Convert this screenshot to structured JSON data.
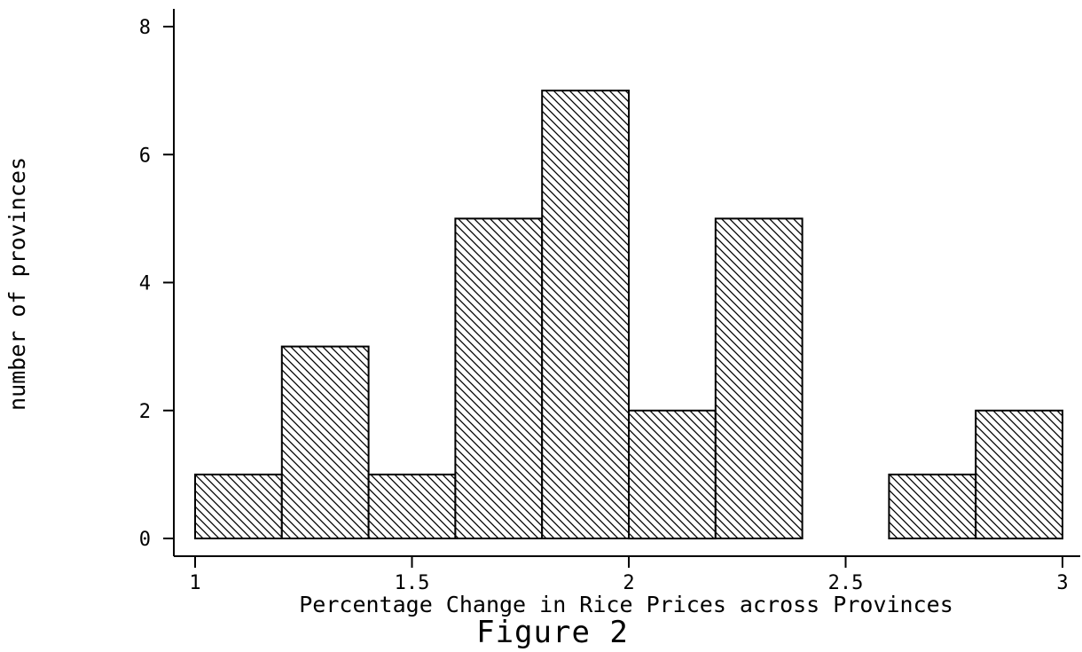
{
  "chart_data": {
    "type": "bar",
    "subtype": "histogram",
    "bins": [
      {
        "x0": 1.0,
        "x1": 1.2,
        "count": 1
      },
      {
        "x0": 1.2,
        "x1": 1.4,
        "count": 3
      },
      {
        "x0": 1.4,
        "x1": 1.6,
        "count": 1
      },
      {
        "x0": 1.6,
        "x1": 1.8,
        "count": 5
      },
      {
        "x0": 1.8,
        "x1": 2.0,
        "count": 7
      },
      {
        "x0": 2.0,
        "x1": 2.2,
        "count": 2
      },
      {
        "x0": 2.2,
        "x1": 2.4,
        "count": 5
      },
      {
        "x0": 2.4,
        "x1": 2.6,
        "count": 0
      },
      {
        "x0": 2.6,
        "x1": 2.8,
        "count": 1
      },
      {
        "x0": 2.8,
        "x1": 3.0,
        "count": 2
      }
    ],
    "xlabel": "Percentage Change in Rice Prices across Provinces",
    "ylabel": "number of provinces",
    "caption": "Figure 2",
    "xlim": [
      1,
      3
    ],
    "ylim": [
      0,
      8
    ],
    "xticks": [
      1,
      1.5,
      2,
      2.5,
      3
    ],
    "xtick_labels": [
      "1",
      "1.5",
      "2",
      "2.5",
      "3"
    ],
    "yticks": [
      0,
      2,
      4,
      6,
      8
    ],
    "ytick_labels": [
      "0",
      "2",
      "4",
      "6",
      "8"
    ],
    "grid": false,
    "bar_fill": "diagonal-hatch",
    "bar_color": "#000000",
    "background": "#ffffff"
  }
}
